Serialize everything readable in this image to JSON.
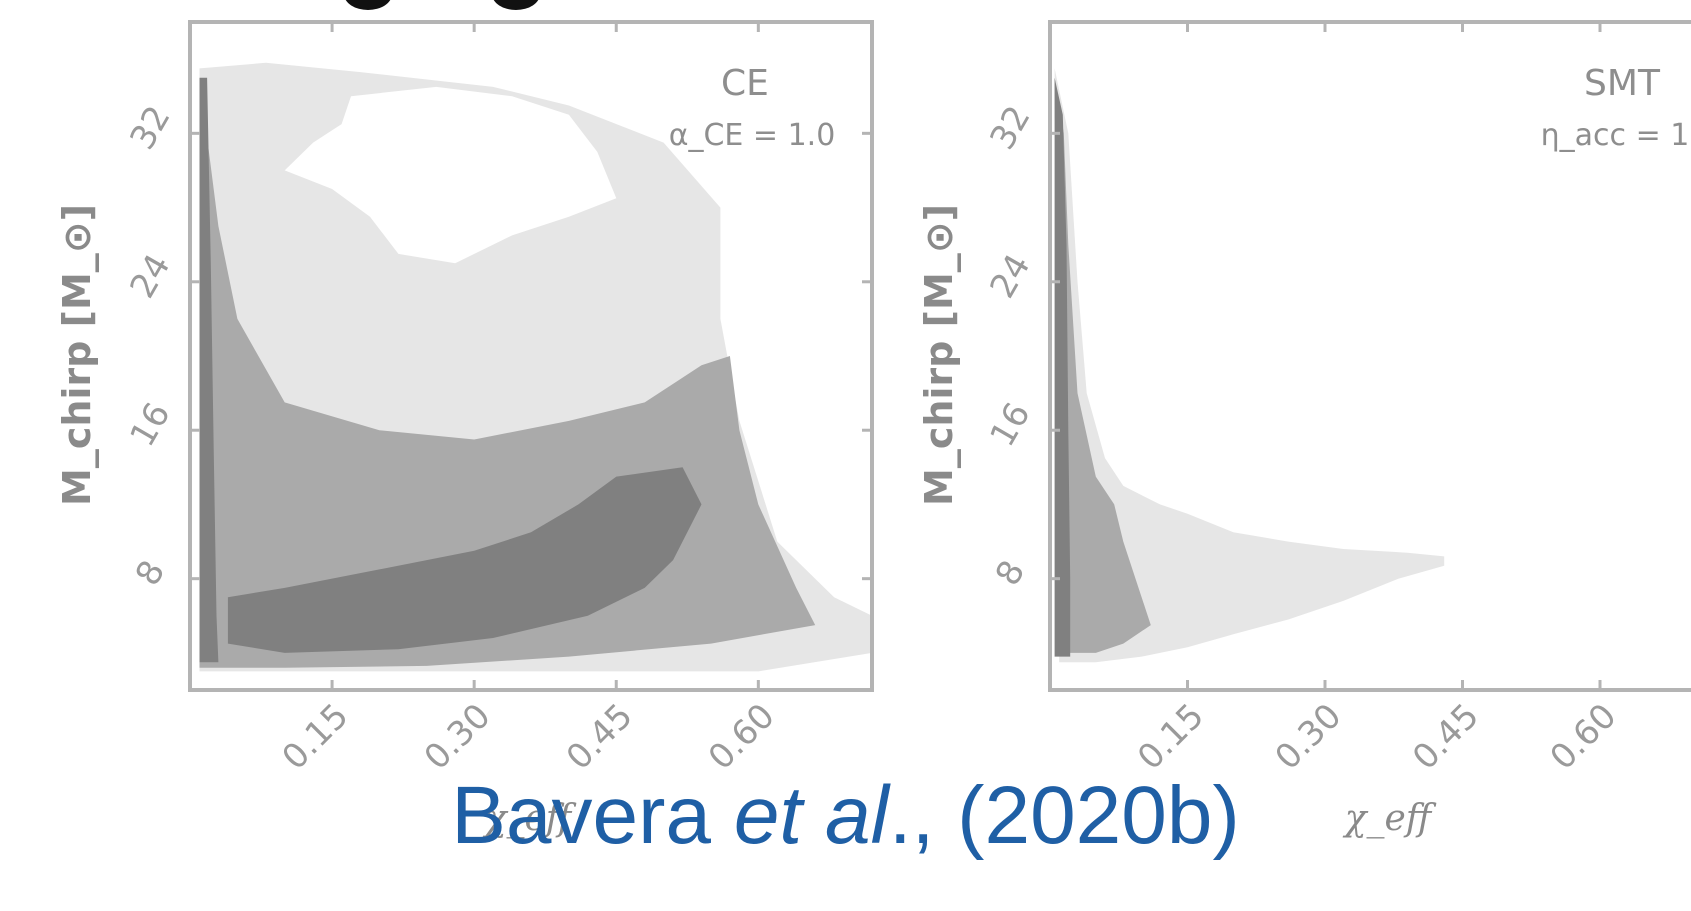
{
  "chart_data": [
    {
      "type": "area",
      "panel": "left",
      "annotation": "CE",
      "annotation_param": "α_CE = 1.0",
      "xlabel": "χ_eff",
      "ylabel": "M_chirp [M_⊙]",
      "xlim": [
        0.0,
        0.72
      ],
      "ylim": [
        2.0,
        38.0
      ],
      "xticks": [
        0.15,
        0.3,
        0.45,
        0.6
      ],
      "xtick_labels": [
        "0.15",
        "0.30",
        "0.45",
        "0.60"
      ],
      "yticks": [
        8,
        16,
        24,
        32
      ],
      "ytick_labels": [
        "8",
        "16",
        "24",
        "32"
      ],
      "grid": false,
      "levels": [
        {
          "shade": "#e6e6e6",
          "outline": [
            [
              0.01,
              35.5
            ],
            [
              0.08,
              35.8
            ],
            [
              0.18,
              35.3
            ],
            [
              0.32,
              34.5
            ],
            [
              0.4,
              33.5
            ],
            [
              0.5,
              31.5
            ],
            [
              0.56,
              28.0
            ],
            [
              0.56,
              22.0
            ],
            [
              0.58,
              16.5
            ],
            [
              0.62,
              10.0
            ],
            [
              0.68,
              7.0
            ],
            [
              0.72,
              6.0
            ],
            [
              0.72,
              4.0
            ],
            [
              0.6,
              3.0
            ],
            [
              0.4,
              3.0
            ],
            [
              0.2,
              3.0
            ],
            [
              0.05,
              3.0
            ],
            [
              0.01,
              3.0
            ]
          ]
        },
        {
          "shade": "#ffffff",
          "outline": [
            [
              0.17,
              34.0
            ],
            [
              0.26,
              34.5
            ],
            [
              0.34,
              34.0
            ],
            [
              0.4,
              33.0
            ],
            [
              0.43,
              31.0
            ],
            [
              0.45,
              28.5
            ],
            [
              0.4,
              27.5
            ],
            [
              0.34,
              26.5
            ],
            [
              0.28,
              25.0
            ],
            [
              0.22,
              25.5
            ],
            [
              0.19,
              27.5
            ],
            [
              0.15,
              29.0
            ],
            [
              0.1,
              30.0
            ],
            [
              0.13,
              31.5
            ],
            [
              0.16,
              32.5
            ]
          ]
        },
        {
          "shade": "#aaaaaa",
          "outline": [
            [
              0.01,
              35.0
            ],
            [
              0.03,
              27.0
            ],
            [
              0.05,
              22.0
            ],
            [
              0.1,
              17.5
            ],
            [
              0.2,
              16.0
            ],
            [
              0.3,
              15.5
            ],
            [
              0.4,
              16.5
            ],
            [
              0.48,
              17.5
            ],
            [
              0.54,
              19.5
            ],
            [
              0.57,
              20.0
            ],
            [
              0.58,
              16.0
            ],
            [
              0.6,
              12.0
            ],
            [
              0.64,
              7.5
            ],
            [
              0.66,
              5.5
            ],
            [
              0.55,
              4.5
            ],
            [
              0.4,
              3.8
            ],
            [
              0.25,
              3.3
            ],
            [
              0.1,
              3.2
            ],
            [
              0.01,
              3.2
            ]
          ]
        },
        {
          "shade": "#808080",
          "outline": [
            [
              0.04,
              7.0
            ],
            [
              0.1,
              7.5
            ],
            [
              0.2,
              8.5
            ],
            [
              0.3,
              9.5
            ],
            [
              0.36,
              10.5
            ],
            [
              0.41,
              12.0
            ],
            [
              0.45,
              13.5
            ],
            [
              0.52,
              14.0
            ],
            [
              0.54,
              12.0
            ],
            [
              0.51,
              9.0
            ],
            [
              0.48,
              7.5
            ],
            [
              0.42,
              6.0
            ],
            [
              0.32,
              4.8
            ],
            [
              0.22,
              4.2
            ],
            [
              0.1,
              4.0
            ],
            [
              0.04,
              4.5
            ]
          ]
        },
        {
          "shade": "#808080",
          "outline": [
            [
              0.01,
              35.0
            ],
            [
              0.018,
              35.0
            ],
            [
              0.022,
              25.0
            ],
            [
              0.025,
              15.0
            ],
            [
              0.028,
              6.0
            ],
            [
              0.03,
              3.5
            ],
            [
              0.01,
              3.5
            ]
          ]
        }
      ]
    },
    {
      "type": "area",
      "panel": "right",
      "annotation": "SMT",
      "annotation_param": "η_acc = 1",
      "xlabel": "χ_eff",
      "ylabel": "M_chirp [M_⊙]",
      "xlim": [
        0.0,
        0.72
      ],
      "ylim": [
        2.0,
        38.0
      ],
      "xticks": [
        0.15,
        0.3,
        0.45,
        0.6
      ],
      "xtick_labels": [
        "0.15",
        "0.30",
        "0.45",
        "0.60"
      ],
      "yticks": [
        8,
        16,
        24,
        32
      ],
      "ytick_labels": [
        "8",
        "16",
        "24",
        "32"
      ],
      "grid": false,
      "levels": [
        {
          "shade": "#e6e6e6",
          "outline": [
            [
              0.005,
              35.5
            ],
            [
              0.02,
              32.0
            ],
            [
              0.03,
              24.0
            ],
            [
              0.04,
              18.0
            ],
            [
              0.06,
              14.5
            ],
            [
              0.08,
              13.0
            ],
            [
              0.12,
              12.0
            ],
            [
              0.15,
              11.5
            ],
            [
              0.2,
              10.5
            ],
            [
              0.26,
              10.0
            ],
            [
              0.32,
              9.6
            ],
            [
              0.39,
              9.4
            ],
            [
              0.43,
              9.2
            ],
            [
              0.43,
              8.7
            ],
            [
              0.38,
              8.0
            ],
            [
              0.32,
              6.8
            ],
            [
              0.26,
              5.8
            ],
            [
              0.2,
              5.0
            ],
            [
              0.15,
              4.3
            ],
            [
              0.1,
              3.8
            ],
            [
              0.05,
              3.5
            ],
            [
              0.01,
              3.5
            ]
          ]
        },
        {
          "shade": "#aaaaaa",
          "outline": [
            [
              0.005,
              35.0
            ],
            [
              0.015,
              32.0
            ],
            [
              0.02,
              26.0
            ],
            [
              0.03,
              18.0
            ],
            [
              0.05,
              13.5
            ],
            [
              0.07,
              12.0
            ],
            [
              0.08,
              10.0
            ],
            [
              0.11,
              5.5
            ],
            [
              0.08,
              4.5
            ],
            [
              0.05,
              4.0
            ],
            [
              0.01,
              4.0
            ]
          ]
        },
        {
          "shade": "#808080",
          "outline": [
            [
              0.005,
              35.0
            ],
            [
              0.014,
              33.0
            ],
            [
              0.018,
              26.0
            ],
            [
              0.02,
              16.0
            ],
            [
              0.022,
              8.0
            ],
            [
              0.022,
              3.8
            ],
            [
              0.005,
              3.8
            ]
          ]
        }
      ]
    }
  ],
  "citation": {
    "author": "Bavera ",
    "etal": "et al",
    "rest": "., (2020b)"
  }
}
